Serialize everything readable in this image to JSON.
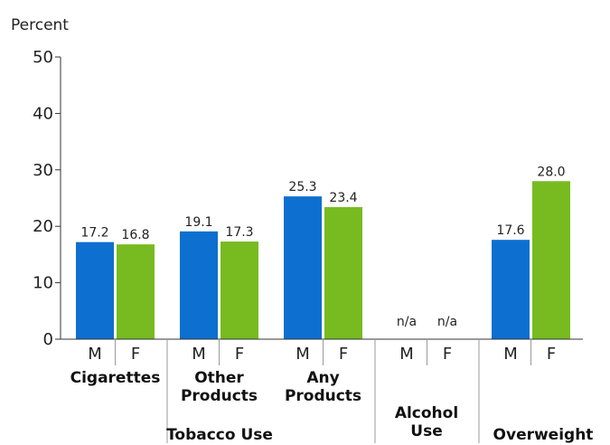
{
  "chart_data": {
    "type": "bar",
    "ylabel": "Percent",
    "ylim": [
      0,
      50
    ],
    "yticks": [
      "0",
      "10",
      "20",
      "30",
      "40",
      "50"
    ],
    "series": [
      {
        "name": "M",
        "color": "#0d6fcf"
      },
      {
        "name": "F",
        "color": "#77bb21"
      }
    ],
    "groups": [
      {
        "label": [
          "Cigarettes"
        ],
        "parent": "Tobacco Use",
        "M": 17.2,
        "F": 16.8,
        "M_label": "17.2",
        "F_label": "16.8"
      },
      {
        "label": [
          "Other",
          "Products"
        ],
        "parent": "Tobacco Use",
        "M": 19.1,
        "F": 17.3,
        "M_label": "19.1",
        "F_label": "17.3"
      },
      {
        "label": [
          "Any",
          "Products"
        ],
        "parent": "Tobacco Use",
        "M": 25.3,
        "F": 23.4,
        "M_label": "25.3",
        "F_label": "23.4"
      },
      {
        "label": [],
        "parent": "Alcohol Use",
        "M": null,
        "F": null,
        "M_label": "n/a",
        "F_label": "n/a"
      },
      {
        "label": [],
        "parent": "Overweight",
        "M": 17.6,
        "F": 28.0,
        "M_label": "17.6",
        "F_label": "28.0"
      }
    ],
    "categories_top": [
      "Tobacco Use",
      "Alcohol Use",
      "Overweight"
    ]
  }
}
